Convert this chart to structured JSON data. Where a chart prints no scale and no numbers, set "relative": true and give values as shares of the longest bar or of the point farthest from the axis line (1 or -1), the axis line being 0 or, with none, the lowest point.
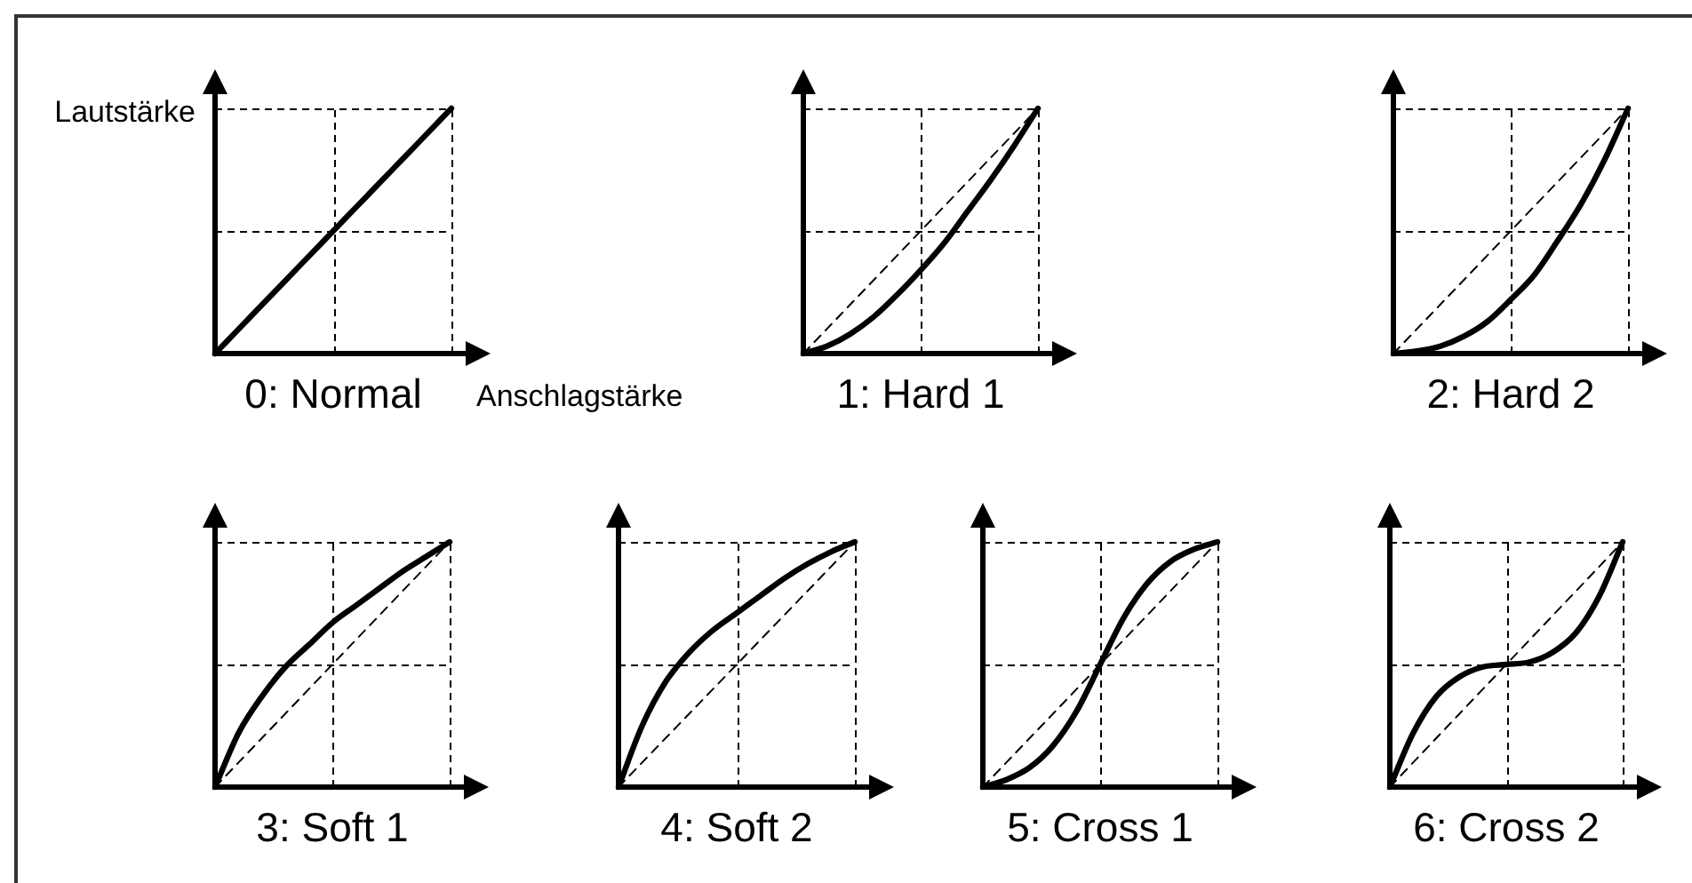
{
  "chart_data": [
    {
      "type": "line",
      "title": "0: Normal",
      "xlabel": "Anschlagstärke",
      "ylabel": "Lautstärke",
      "relative": true,
      "grid": true,
      "categories": [
        null,
        null,
        null,
        null,
        null,
        null,
        null,
        null,
        null,
        null,
        null
      ],
      "series": [
        {
          "color": "#000000",
          "line_style": "solid",
          "values": [
            0,
            0.1,
            0.2,
            0.3,
            0.4,
            0.5,
            0.6,
            0.7,
            0.8,
            0.9,
            1
          ]
        }
      ]
    },
    {
      "type": "line",
      "title": "1: Hard 1",
      "relative": true,
      "grid": true,
      "categories": [
        null,
        null,
        null,
        null,
        null,
        null,
        null,
        null,
        null,
        null,
        null
      ],
      "series": [
        {
          "color": "#000000",
          "line_style": "solid",
          "values": [
            0,
            0.03,
            0.08,
            0.15,
            0.24,
            0.34,
            0.45,
            0.58,
            0.71,
            0.85,
            1
          ]
        },
        {
          "color": "#000000",
          "line_style": "dashed",
          "values": [
            0,
            0.1,
            0.2,
            0.3,
            0.4,
            0.5,
            0.6,
            0.7,
            0.8,
            0.9,
            1
          ]
        }
      ]
    },
    {
      "type": "line",
      "title": "2: Hard 2",
      "relative": true,
      "grid": true,
      "categories": [
        null,
        null,
        null,
        null,
        null,
        null,
        null,
        null,
        null,
        null,
        null
      ],
      "series": [
        {
          "color": "#000000",
          "line_style": "solid",
          "values": [
            0,
            0.01,
            0.03,
            0.07,
            0.13,
            0.22,
            0.32,
            0.46,
            0.61,
            0.79,
            1
          ]
        },
        {
          "color": "#000000",
          "line_style": "dashed",
          "values": [
            0,
            0.1,
            0.2,
            0.3,
            0.4,
            0.5,
            0.6,
            0.7,
            0.8,
            0.9,
            1
          ]
        }
      ]
    },
    {
      "type": "line",
      "title": "3: Soft 1",
      "relative": true,
      "grid": true,
      "categories": [
        null,
        null,
        null,
        null,
        null,
        null,
        null,
        null,
        null,
        null,
        null
      ],
      "series": [
        {
          "color": "#000000",
          "line_style": "solid",
          "values": [
            0,
            0.22,
            0.37,
            0.49,
            0.58,
            0.67,
            0.74,
            0.81,
            0.88,
            0.94,
            1
          ]
        },
        {
          "color": "#000000",
          "line_style": "dashed",
          "values": [
            0,
            0.1,
            0.2,
            0.3,
            0.4,
            0.5,
            0.6,
            0.7,
            0.8,
            0.9,
            1
          ]
        }
      ]
    },
    {
      "type": "line",
      "title": "4: Soft 2",
      "relative": true,
      "grid": true,
      "categories": [
        null,
        null,
        null,
        null,
        null,
        null,
        null,
        null,
        null,
        null,
        null
      ],
      "series": [
        {
          "color": "#000000",
          "line_style": "solid",
          "values": [
            0,
            0.25,
            0.43,
            0.55,
            0.64,
            0.71,
            0.78,
            0.85,
            0.91,
            0.96,
            1
          ]
        },
        {
          "color": "#000000",
          "line_style": "dashed",
          "values": [
            0,
            0.1,
            0.2,
            0.3,
            0.4,
            0.5,
            0.6,
            0.7,
            0.8,
            0.9,
            1
          ]
        }
      ]
    },
    {
      "type": "line",
      "title": "5: Cross 1",
      "relative": true,
      "grid": true,
      "categories": [
        null,
        null,
        null,
        null,
        null,
        null,
        null,
        null,
        null,
        null,
        null
      ],
      "series": [
        {
          "color": "#000000",
          "line_style": "solid",
          "values": [
            0,
            0.03,
            0.08,
            0.17,
            0.31,
            0.5,
            0.69,
            0.83,
            0.92,
            0.97,
            1
          ]
        },
        {
          "color": "#000000",
          "line_style": "dashed",
          "values": [
            0,
            0.1,
            0.2,
            0.3,
            0.4,
            0.5,
            0.6,
            0.7,
            0.8,
            0.9,
            1
          ]
        }
      ]
    },
    {
      "type": "line",
      "title": "6: Cross 2",
      "relative": true,
      "grid": true,
      "categories": [
        null,
        null,
        null,
        null,
        null,
        null,
        null,
        null,
        null,
        null,
        null
      ],
      "series": [
        {
          "color": "#000000",
          "line_style": "solid",
          "values": [
            0,
            0.22,
            0.37,
            0.45,
            0.49,
            0.5,
            0.51,
            0.55,
            0.63,
            0.78,
            1
          ]
        },
        {
          "color": "#000000",
          "line_style": "dashed",
          "values": [
            0,
            0.1,
            0.2,
            0.3,
            0.4,
            0.5,
            0.6,
            0.7,
            0.8,
            0.9,
            1
          ]
        }
      ]
    }
  ]
}
